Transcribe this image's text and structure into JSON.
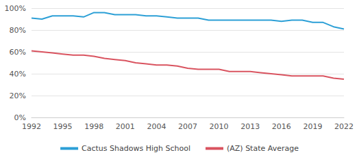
{
  "chart_data": {
    "type": "line",
    "x": [
      1992,
      1993,
      1994,
      1995,
      1996,
      1997,
      1998,
      1999,
      2000,
      2001,
      2002,
      2003,
      2004,
      2005,
      2006,
      2007,
      2008,
      2009,
      2010,
      2011,
      2012,
      2013,
      2014,
      2015,
      2016,
      2017,
      2018,
      2019,
      2020,
      2021,
      2022
    ],
    "series": [
      {
        "name": "Cactus Shadows High School",
        "color": "#2b9fd6",
        "values": [
          91,
          90,
          93,
          93,
          93,
          92,
          96,
          96,
          94,
          94,
          94,
          93,
          93,
          92,
          91,
          91,
          91,
          89,
          89,
          89,
          89,
          89,
          89,
          89,
          88,
          89,
          89,
          87,
          87,
          83,
          81
        ]
      },
      {
        "name": "(AZ) State Average",
        "color": "#d9535f",
        "values": [
          61,
          60,
          59,
          58,
          57,
          57,
          56,
          54,
          53,
          52,
          50,
          49,
          48,
          48,
          47,
          45,
          44,
          44,
          44,
          42,
          42,
          42,
          41,
          40,
          39,
          38,
          38,
          38,
          38,
          36,
          35
        ]
      }
    ],
    "xlim": [
      1992,
      2022
    ],
    "xticks": [
      1992,
      1995,
      1998,
      2001,
      2004,
      2007,
      2010,
      2013,
      2016,
      2019,
      2022
    ],
    "ylim": [
      0,
      100
    ],
    "yticks": [
      {
        "value": 0,
        "label": "0%"
      },
      {
        "value": 20,
        "label": "20%"
      },
      {
        "value": 40,
        "label": "40%"
      },
      {
        "value": 60,
        "label": "60%"
      },
      {
        "value": 80,
        "label": "80%"
      },
      {
        "value": 100,
        "label": "100%"
      }
    ],
    "grid": true,
    "legend": "bottom"
  }
}
